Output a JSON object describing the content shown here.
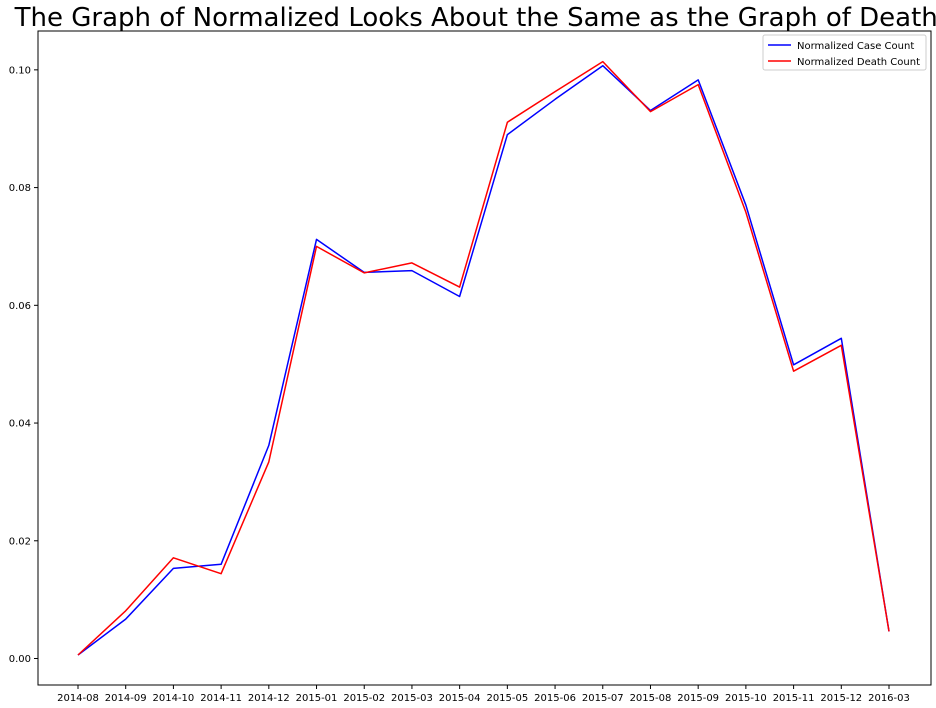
{
  "chart_data": {
    "type": "line",
    "title": "The Graph of Normalized Looks About the Same as the Graph of Deaths",
    "xlabel": "",
    "ylabel": "",
    "categories": [
      "2014-08",
      "2014-09",
      "2014-10",
      "2014-11",
      "2014-12",
      "2015-01",
      "2015-02",
      "2015-03",
      "2015-04",
      "2015-05",
      "2015-06",
      "2015-07",
      "2015-08",
      "2015-09",
      "2015-10",
      "2015-11",
      "2015-12",
      "2016-03"
    ],
    "series": [
      {
        "name": "Normalized Case Count",
        "color": "#0000ff",
        "values": [
          0.0006,
          0.0067,
          0.0153,
          0.016,
          0.0362,
          0.0712,
          0.0656,
          0.0659,
          0.0615,
          0.089,
          0.095,
          0.1007,
          0.0931,
          0.0983,
          0.077,
          0.0499,
          0.0544,
          0.0046
        ]
      },
      {
        "name": "Normalized Death Count",
        "color": "#ff0000",
        "values": [
          0.0006,
          0.0081,
          0.0171,
          0.0144,
          0.0334,
          0.07,
          0.0655,
          0.0672,
          0.0631,
          0.0911,
          0.0963,
          0.1014,
          0.0929,
          0.0975,
          0.0758,
          0.0488,
          0.0532,
          0.0046
        ]
      }
    ],
    "yticks": [
      "0.00",
      "0.02",
      "0.04",
      "0.06",
      "0.08",
      "0.10"
    ],
    "ylim": [
      -0.0045,
      0.1066
    ],
    "grid": false,
    "legend_position": "top-right"
  }
}
